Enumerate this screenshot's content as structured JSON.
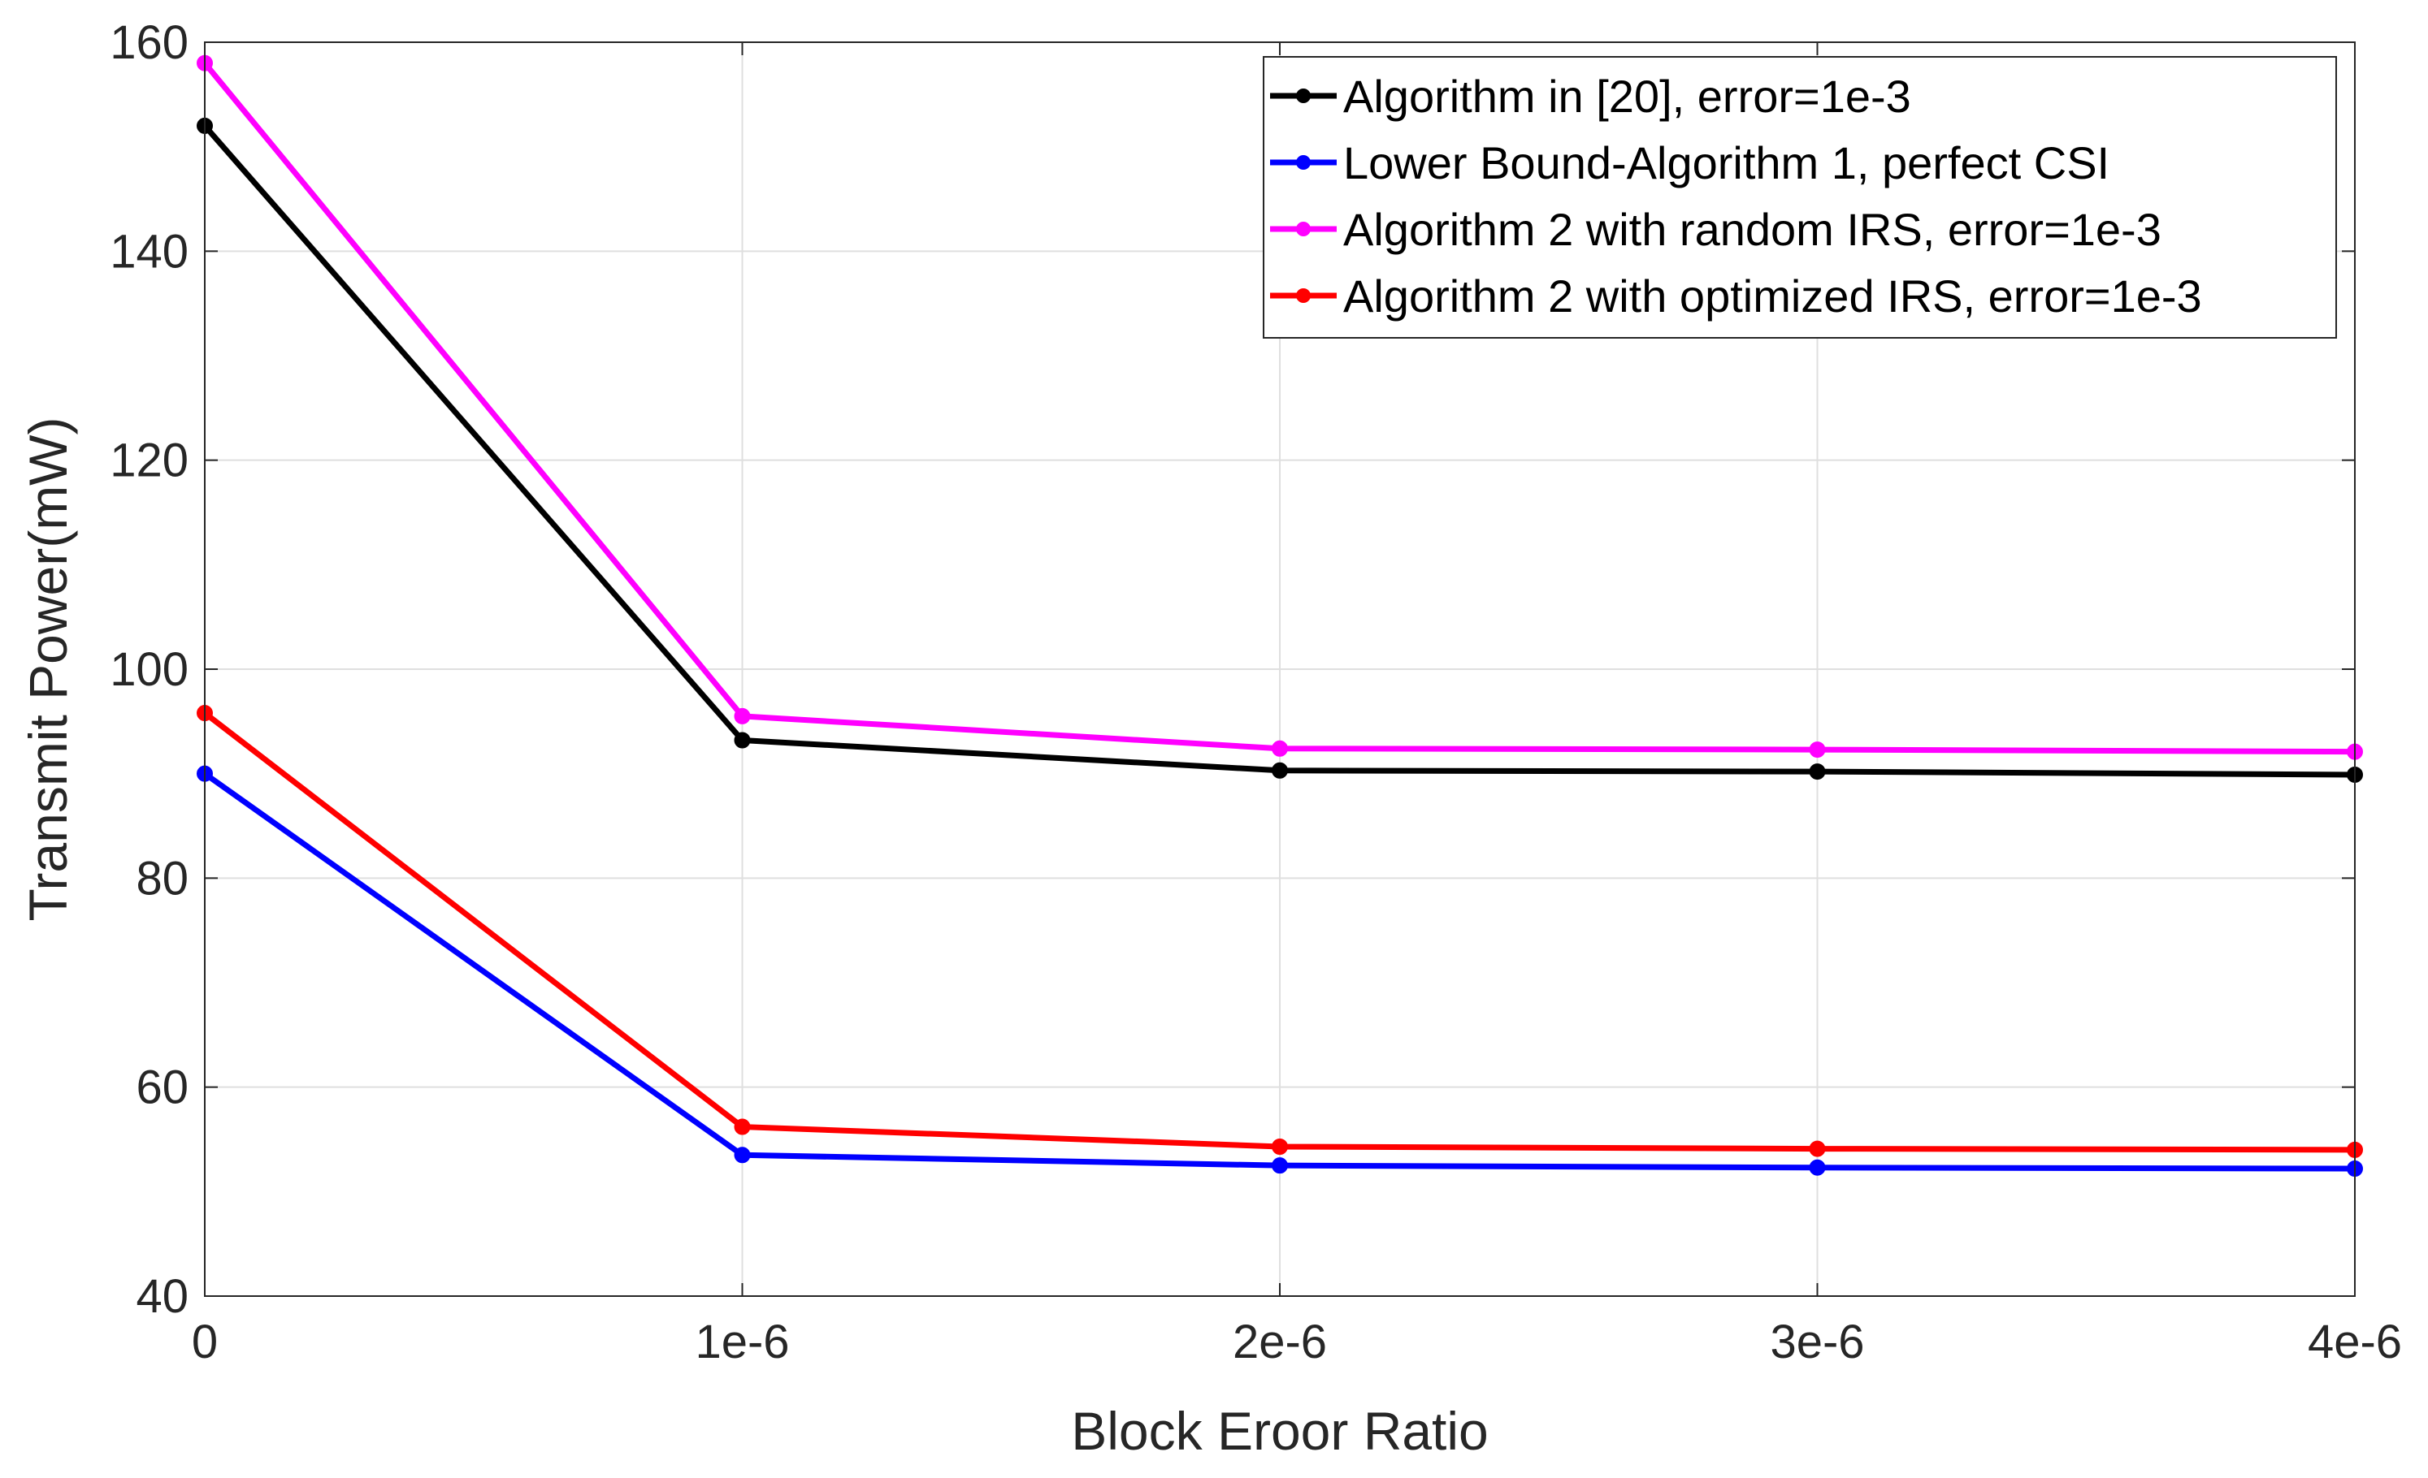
{
  "chart_data": {
    "type": "line",
    "title": "",
    "xlabel": "Block Eroor Ratio",
    "ylabel": "Transmit Power(mW)",
    "x": [
      0,
      1,
      2,
      3,
      4
    ],
    "xtick_labels": [
      "0",
      "1e-6",
      "2e-6",
      "3e-6",
      "4e-6"
    ],
    "xlim": [
      0,
      4
    ],
    "ylim": [
      40,
      160
    ],
    "yticks": [
      40,
      60,
      80,
      100,
      120,
      140,
      160
    ],
    "ytick_labels": [
      "40",
      "60",
      "80",
      "100",
      "120",
      "140",
      "160"
    ],
    "grid": true,
    "legend_position": "top-right",
    "series": [
      {
        "name": "Algorithm in [20], error=1e-3",
        "color": "#000000",
        "values": [
          152,
          93.2,
          90.3,
          90.2,
          89.9
        ]
      },
      {
        "name": "Lower Bound-Algorithm 1, perfect CSI",
        "color": "#0000ff",
        "values": [
          90,
          53.5,
          52.5,
          52.3,
          52.2
        ]
      },
      {
        "name": "Algorithm 2 with random IRS, error=1e-3",
        "color": "#ff00ff",
        "values": [
          158,
          95.5,
          92.4,
          92.3,
          92.1
        ]
      },
      {
        "name": "Algorithm 2 with optimized IRS, error=1e-3",
        "color": "#ff0000",
        "values": [
          95.8,
          56.2,
          54.3,
          54.1,
          54
        ]
      }
    ]
  }
}
